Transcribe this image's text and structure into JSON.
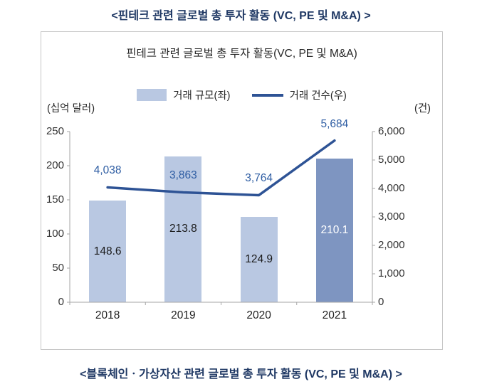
{
  "page": {
    "top_title": "<핀테크 관련 글로벌 총 투자 활동 (VC, PE 및 M&A) >",
    "bottom_title": "<블록체인ㆍ가상자산 관련 글로벌 총 투자 활동 (VC, PE 및 M&A) >"
  },
  "chart": {
    "title": "핀테크 관련 글로벌 총 투자 활동(VC, PE 및 M&A)",
    "legend": {
      "bar_label": "거래 규모(좌)",
      "line_label": "거래 건수(우)"
    },
    "left_unit": "(십억 달러)",
    "right_unit": "(건)"
  },
  "chart_data": {
    "type": "bar",
    "subtype": "combo-bar-line",
    "title": "핀테크 관련 글로벌 총 투자 활동(VC, PE 및 M&A)",
    "categories": [
      "2018",
      "2019",
      "2020",
      "2021"
    ],
    "series": [
      {
        "name": "거래 규모(좌)",
        "type": "bar",
        "axis": "left",
        "values": [
          148.6,
          213.8,
          124.9,
          210.1
        ]
      },
      {
        "name": "거래 건수(우)",
        "type": "line",
        "axis": "right",
        "values": [
          4038,
          3863,
          3764,
          5684
        ]
      }
    ],
    "left_axis": {
      "label": "(십억 달러)",
      "range": [
        0,
        250
      ],
      "ticks": [
        0,
        50,
        100,
        150,
        200,
        250
      ]
    },
    "right_axis": {
      "label": "(건)",
      "range": [
        0,
        6000
      ],
      "ticks": [
        0,
        1000,
        2000,
        3000,
        4000,
        5000,
        6000
      ]
    },
    "grid": false,
    "legend_position": "top",
    "highlight_last_bar": true
  },
  "colors": {
    "bar_light": "#b9c8e2",
    "bar_dark": "#7e95c1",
    "line": "#2e5395",
    "value_label_blue": "#2e5da3",
    "title_navy": "#1f3864",
    "axis_gray": "#a6a6a6"
  }
}
